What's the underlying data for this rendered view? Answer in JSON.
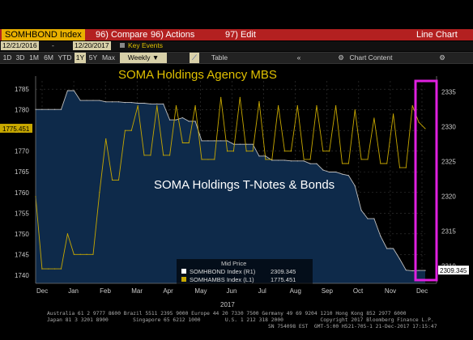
{
  "header": {
    "ticker": "SOMHBOND Index",
    "compare": "96) Compare",
    "actions": "96) Actions",
    "edit": "97) Edit",
    "view": "Line Chart"
  },
  "range": {
    "start": "12/21/2016",
    "end": "12/20/2017",
    "key_events": "Key Events"
  },
  "toolbar": {
    "periods": [
      "1D",
      "3D",
      "1M",
      "6M",
      "YTD",
      "1Y",
      "5Y",
      "Max"
    ],
    "frequency": "Weekly",
    "table": "Table",
    "collapse": "«",
    "chart_content": "Chart Content",
    "settings": "⚙"
  },
  "colors": {
    "mbs": "#c8a800",
    "bonds": "#0e2a4a",
    "bonds_line": "#c0c0c0",
    "highlight": "#e020e0",
    "header_bar": "#b32020",
    "annotation": "#e0c000"
  },
  "chart_data": {
    "type": "line",
    "title": "",
    "xlabel": "2017",
    "x_ticks": [
      "Dec",
      "Jan",
      "Feb",
      "Mar",
      "Apr",
      "May",
      "Jun",
      "Jul",
      "Aug",
      "Sep",
      "Oct",
      "Nov",
      "Dec"
    ],
    "left_axis": {
      "ylim": [
        1738,
        1787
      ],
      "ticks": [
        1740,
        1745,
        1750,
        1755,
        1760,
        1765,
        1770,
        1775,
        1780,
        1785
      ]
    },
    "right_axis": {
      "ylim": [
        2307.5,
        2336.6
      ],
      "ticks": [
        2310,
        2315,
        2320,
        2325,
        2330,
        2335
      ]
    },
    "series": [
      {
        "name": "SOMHBOND Index (R1)",
        "axis": "right",
        "last_value": "2309.345",
        "values": [
          2332.5,
          2332.5,
          2332.5,
          2332.5,
          2332.5,
          2335.2,
          2335.2,
          2333.8,
          2333.8,
          2333.8,
          2333.8,
          2333.6,
          2333.6,
          2333.6,
          2333.5,
          2333.5,
          2333.4,
          2333.4,
          2333.3,
          2333.3,
          2333.3,
          2331.0,
          2331.0,
          2331.3,
          2330.8,
          2330.8,
          2328.0,
          2328.0,
          2328.0,
          2328.0,
          2328.0,
          2327.5,
          2327.5,
          2327.5,
          2327.5,
          2325.8,
          2325.8,
          2325.2,
          2325.2,
          2325.2,
          2325.1,
          2325.1,
          2325.1,
          2324.7,
          2324.7,
          2323.8,
          2323.5,
          2323.5,
          2323.2,
          2323.0,
          2321.5,
          2318.0,
          2316.8,
          2316.8,
          2314.3,
          2312.5,
          2312.5,
          2311.0,
          2309.4,
          2309.3,
          2309.345,
          2309.345
        ]
      },
      {
        "name": "SOMHAMBS Index (L1)",
        "axis": "left",
        "last_value": "1775.451",
        "values": [
          1759,
          1741.5,
          1741.5,
          1741.5,
          1741.5,
          1750,
          1745,
          1745,
          1745,
          1745,
          1760,
          1773,
          1763,
          1763,
          1775,
          1775,
          1781,
          1769,
          1769,
          1781,
          1769,
          1769,
          1781,
          1772,
          1772,
          1781,
          1768,
          1768,
          1768,
          1783,
          1770,
          1770,
          1783,
          1770,
          1770,
          1782,
          1768,
          1768,
          1781,
          1770,
          1770,
          1781,
          1768,
          1768,
          1781,
          1770,
          1770,
          1781,
          1767,
          1767,
          1780,
          1768,
          1768,
          1778,
          1767,
          1767,
          1779,
          1766,
          1766,
          1781,
          1777,
          1775.451
        ]
      }
    ],
    "annotations": [
      "SOMA Holdings Agency MBS",
      "SOMA Holdings T-Notes & Bonds"
    ],
    "legend": {
      "title": "Mid Price",
      "items": [
        {
          "label": "SOMHBOND Index (R1)",
          "value": "2309.345"
        },
        {
          "label": "SOMHAMBS Index (L1)",
          "value": "1775.451"
        }
      ],
      "placement": "bottom-center"
    },
    "grid": true
  },
  "footer": {
    "line1": "Australia 61 2 9777 8600 Brazil 5511 2395 9000 Europe 44 20 7330 7500 Germany 49 69 9204 1210 Hong Kong 852 2977 6000",
    "line2": "Japan 81 3 3201 8900        Singapore 65 6212 1000        U.S. 1 212 318 2000            Copyright 2017 Bloomberg Finance L.P.",
    "line3": "SN 754098 EST  GMT-5:00 H521-705-1 21-Dec-2017 17:15:47"
  }
}
